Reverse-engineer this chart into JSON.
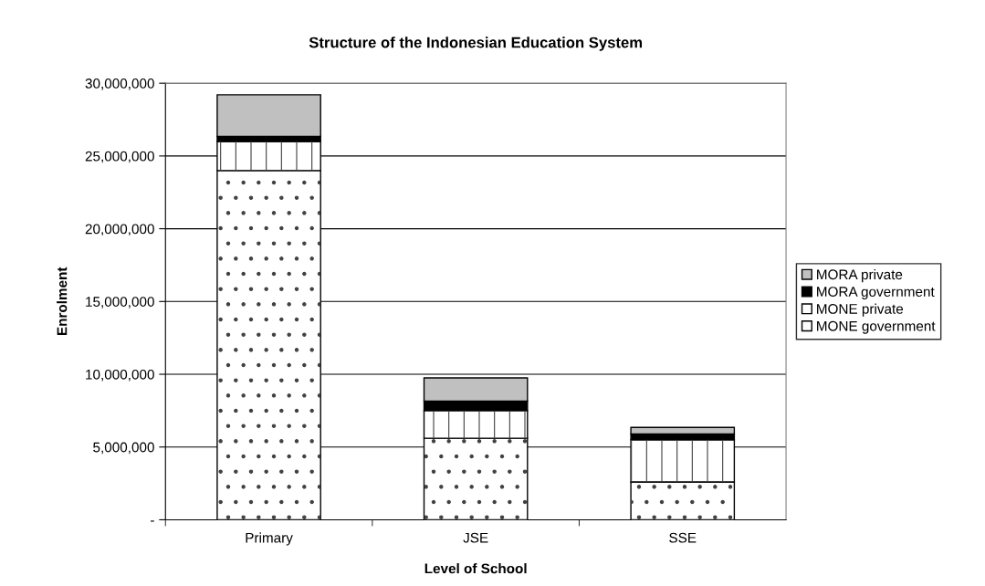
{
  "chart_data": {
    "type": "bar",
    "title": "Structure of the Indonesian Education System",
    "xlabel": "Level of School",
    "ylabel": "Enrolment",
    "categories": [
      "Primary",
      "JSE",
      "SSE"
    ],
    "stacked": true,
    "series": [
      {
        "name": "MONE government",
        "color": "#ffffff",
        "values": [
          24000000,
          5600000,
          2600000
        ]
      },
      {
        "name": "MONE private",
        "color": "#ffffff",
        "values": [
          2000000,
          1900000,
          2900000
        ]
      },
      {
        "name": "MORA government",
        "color": "#000000",
        "values": [
          350000,
          650000,
          400000
        ]
      },
      {
        "name": "MORA private",
        "color": "#c0c0c0",
        "values": [
          2850000,
          1600000,
          450000
        ]
      }
    ],
    "ylim": [
      0,
      30000000
    ],
    "yticks": [
      {
        "value": 0,
        "label": "-"
      },
      {
        "value": 5000000,
        "label": "5,000,000"
      },
      {
        "value": 10000000,
        "label": "10,000,000"
      },
      {
        "value": 15000000,
        "label": "15,000,000"
      },
      {
        "value": 20000000,
        "label": "20,000,000"
      },
      {
        "value": 25000000,
        "label": "25,000,000"
      },
      {
        "value": 30000000,
        "label": "30,000,000"
      }
    ],
    "grid": "y",
    "legend": "right"
  }
}
